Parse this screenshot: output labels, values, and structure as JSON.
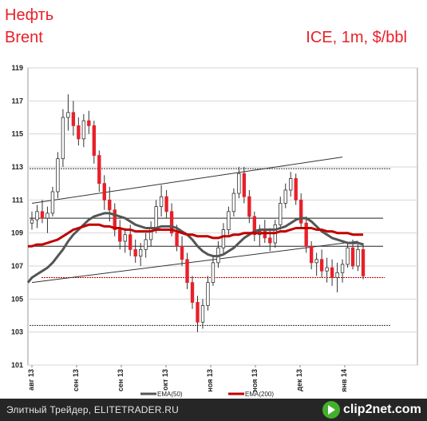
{
  "header": {
    "title_line1": "Нефть",
    "title_line2": "Brent",
    "subtitle": "ICE, 1m, $/bbl"
  },
  "footer": {
    "text": "Элитный Трейдер, ELITETRADER.RU",
    "logo": "clip2net.com",
    "logo_icon": "clip2net-logo-icon"
  },
  "colors": {
    "up": "#ffffff",
    "down": "#e8202a",
    "candle_outline": "#333333",
    "ema50": "#555555",
    "ema200": "#c00000",
    "title": "#e8202a"
  },
  "chart_data": {
    "type": "candlestick",
    "ylim": [
      101,
      119
    ],
    "yticks": [
      101,
      103,
      105,
      107,
      109,
      111,
      113,
      115,
      117,
      119
    ],
    "xticks": [
      "авг 13",
      "сен 13",
      "сен 13",
      "окт 13",
      "ноя 13",
      "ноя 13",
      "дек 13",
      "янв 14"
    ],
    "grid": "horizontal",
    "legend": [
      {
        "name": "EMA(50)",
        "color": "#555555"
      },
      {
        "name": "EMA(200)",
        "color": "#c00000"
      }
    ],
    "candles": [
      [
        109.6,
        110.3,
        109.2,
        109.8
      ],
      [
        109.8,
        110.7,
        109.3,
        110.3
      ],
      [
        110.3,
        111.0,
        109.6,
        109.9
      ],
      [
        109.9,
        110.6,
        109.0,
        110.2
      ],
      [
        110.2,
        111.8,
        110.0,
        111.5
      ],
      [
        111.5,
        113.9,
        111.1,
        113.5
      ],
      [
        113.5,
        116.5,
        113.0,
        116.0
      ],
      [
        116.0,
        117.4,
        115.2,
        116.3
      ],
      [
        116.3,
        117.0,
        114.9,
        115.5
      ],
      [
        115.5,
        116.0,
        114.3,
        114.7
      ],
      [
        114.7,
        116.2,
        114.2,
        115.8
      ],
      [
        115.8,
        116.4,
        115.0,
        115.5
      ],
      [
        115.5,
        115.8,
        113.2,
        113.7
      ],
      [
        113.7,
        114.0,
        111.5,
        112.0
      ],
      [
        112.0,
        112.5,
        110.4,
        111.0
      ],
      [
        111.0,
        111.8,
        109.7,
        110.4
      ],
      [
        110.4,
        110.8,
        108.8,
        109.2
      ],
      [
        109.2,
        109.8,
        108.0,
        108.5
      ],
      [
        108.5,
        109.3,
        107.8,
        108.9
      ],
      [
        108.9,
        109.5,
        107.6,
        108.0
      ],
      [
        108.0,
        108.6,
        107.2,
        107.6
      ],
      [
        107.6,
        108.4,
        107.0,
        108.0
      ],
      [
        108.0,
        109.0,
        107.5,
        108.6
      ],
      [
        108.6,
        109.7,
        108.2,
        109.3
      ],
      [
        109.3,
        111.0,
        109.0,
        110.6
      ],
      [
        110.6,
        111.9,
        110.0,
        111.2
      ],
      [
        111.2,
        111.6,
        109.9,
        110.3
      ],
      [
        110.3,
        110.8,
        108.8,
        109.0
      ],
      [
        109.0,
        109.5,
        107.9,
        108.2
      ],
      [
        108.2,
        108.8,
        107.0,
        107.4
      ],
      [
        107.4,
        107.8,
        105.6,
        106.0
      ],
      [
        106.0,
        106.4,
        104.4,
        104.8
      ],
      [
        104.8,
        105.2,
        103.0,
        103.6
      ],
      [
        103.6,
        105.0,
        103.2,
        104.6
      ],
      [
        104.6,
        106.4,
        104.3,
        106.0
      ],
      [
        106.0,
        107.6,
        105.8,
        107.2
      ],
      [
        107.2,
        108.5,
        106.9,
        108.1
      ],
      [
        108.1,
        109.6,
        107.7,
        109.2
      ],
      [
        109.2,
        110.6,
        108.9,
        110.3
      ],
      [
        110.3,
        111.7,
        110.0,
        111.4
      ],
      [
        111.4,
        113.0,
        111.1,
        112.6
      ],
      [
        112.6,
        113.0,
        110.8,
        111.2
      ],
      [
        111.2,
        111.6,
        109.6,
        110.0
      ],
      [
        110.0,
        110.3,
        108.5,
        108.9
      ],
      [
        108.9,
        109.5,
        108.2,
        109.1
      ],
      [
        109.1,
        109.8,
        108.4,
        108.7
      ],
      [
        108.7,
        109.3,
        107.9,
        108.4
      ],
      [
        108.4,
        109.8,
        108.1,
        109.5
      ],
      [
        109.5,
        111.2,
        109.2,
        110.8
      ],
      [
        110.8,
        112.0,
        110.5,
        111.6
      ],
      [
        111.6,
        112.7,
        111.2,
        112.3
      ],
      [
        112.3,
        112.6,
        110.7,
        111.0
      ],
      [
        111.0,
        111.4,
        109.3,
        109.6
      ],
      [
        109.6,
        110.0,
        107.8,
        108.2
      ],
      [
        108.2,
        108.5,
        106.8,
        107.2
      ],
      [
        107.2,
        107.8,
        106.4,
        107.4
      ],
      [
        107.4,
        108.0,
        106.3,
        106.7
      ],
      [
        106.7,
        107.5,
        106.0,
        106.9
      ],
      [
        106.9,
        107.4,
        105.8,
        106.3
      ],
      [
        106.3,
        107.2,
        105.4,
        106.6
      ],
      [
        106.6,
        107.4,
        106.0,
        107.1
      ],
      [
        107.1,
        108.4,
        106.9,
        108.1
      ],
      [
        108.1,
        108.6,
        106.8,
        107.0
      ],
      [
        107.0,
        108.3,
        106.7,
        108.0
      ],
      [
        108.0,
        108.4,
        106.2,
        106.4
      ]
    ],
    "ema50": [
      106.3,
      106.5,
      106.7,
      106.9,
      107.2,
      107.6,
      108.0,
      108.5,
      108.9,
      109.2,
      109.5,
      109.8,
      110.0,
      110.1,
      110.2,
      110.2,
      110.1,
      110.0,
      109.9,
      109.7,
      109.5,
      109.4,
      109.3,
      109.3,
      109.3,
      109.4,
      109.4,
      109.4,
      109.3,
      109.1,
      108.9,
      108.6,
      108.2,
      107.9,
      107.7,
      107.6,
      107.6,
      107.7,
      107.9,
      108.1,
      108.4,
      108.7,
      108.9,
      109.1,
      109.2,
      109.2,
      109.2,
      109.2,
      109.3,
      109.4,
      109.6,
      109.8,
      109.9,
      109.9,
      109.7,
      109.4,
      109.1,
      108.9,
      108.7,
      108.6,
      108.5,
      108.4,
      108.4,
      108.4,
      108.3
    ],
    "ema200": [
      108.2,
      108.3,
      108.3,
      108.4,
      108.5,
      108.6,
      108.8,
      109.0,
      109.2,
      109.3,
      109.4,
      109.5,
      109.5,
      109.5,
      109.4,
      109.4,
      109.3,
      109.3,
      109.2,
      109.2,
      109.1,
      109.1,
      109.1,
      109.1,
      109.2,
      109.2,
      109.2,
      109.2,
      109.1,
      109.0,
      108.9,
      108.9,
      108.8,
      108.8,
      108.8,
      108.7,
      108.7,
      108.8,
      108.8,
      108.9,
      108.9,
      109.0,
      109.0,
      109.0,
      109.0,
      109.0,
      109.0,
      109.0,
      109.1,
      109.1,
      109.2,
      109.3,
      109.3,
      109.3,
      109.3,
      109.2,
      109.2,
      109.1,
      109.1,
      109.0,
      109.0,
      109.0,
      108.9,
      108.9,
      108.9
    ],
    "trend_lines": [
      {
        "name": "upper-channel-line",
        "from": [
          0,
          110.8
        ],
        "to": [
          60,
          113.6
        ]
      },
      {
        "name": "lower-channel-line",
        "from": [
          0,
          106.0
        ],
        "to": [
          63,
          108.5
        ]
      }
    ],
    "levels_solid": [
      109.9,
      108.2
    ],
    "levels_dotted": [
      112.9,
      106.3,
      103.4
    ]
  }
}
